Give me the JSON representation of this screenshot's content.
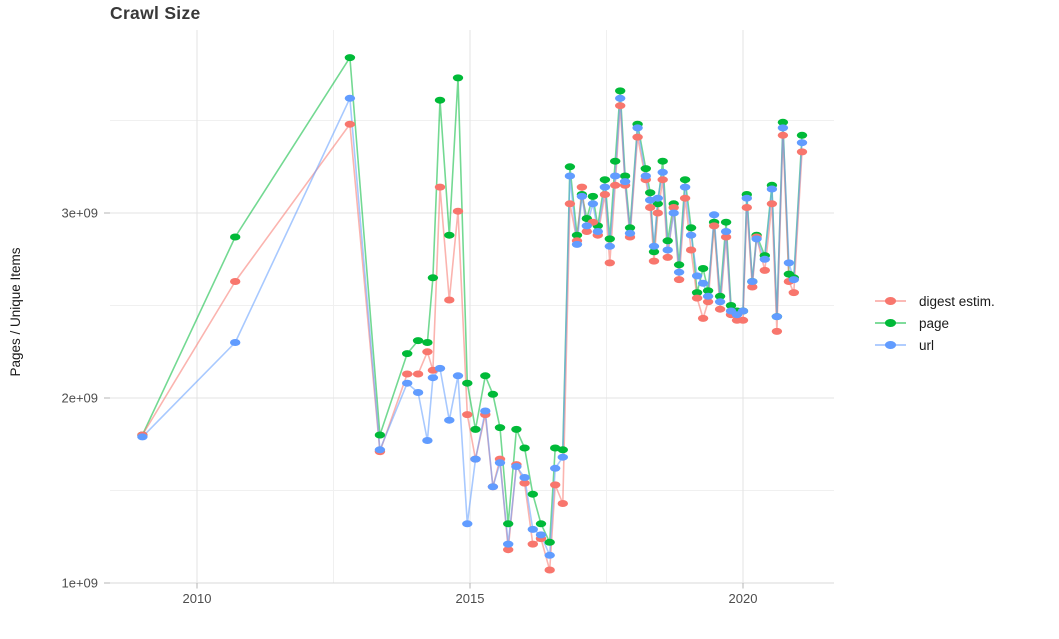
{
  "chart": {
    "title": "Crawl Size",
    "y_axis_label": "Pages / Unique Items",
    "legend": [
      {
        "label": "digest estim.",
        "color": "#F8766D"
      },
      {
        "label": "page",
        "color": "#00BA38"
      },
      {
        "label": "url",
        "color": "#619CFF"
      }
    ]
  },
  "chart_data": {
    "type": "line",
    "title": "Crawl Size",
    "xlabel": "",
    "ylabel": "Pages / Unique Items",
    "x_unit": "year (decimal = crawl date)",
    "y_unit": "items, values listed in billions (1e9)",
    "grid": true,
    "legend_position": "right",
    "marker": "ellipse-dot",
    "x_axis": {
      "tick_values": [
        2010,
        2015,
        2020
      ],
      "tick_labels": [
        "2010",
        "2015",
        "2020"
      ],
      "minor_ticks": [
        2012.5,
        2017.5
      ],
      "range": [
        2008.4,
        2021.7
      ]
    },
    "y_axis": {
      "tick_values": [
        1,
        2,
        3
      ],
      "tick_labels": [
        "1e+09",
        "2e+09",
        "3e+09"
      ],
      "minor_ticks": [
        1.5,
        2.5,
        3.5
      ],
      "range": [
        0.99,
        3.99
      ]
    },
    "x": [
      2009.0,
      2010.7,
      2012.8,
      2013.35,
      2013.85,
      2014.05,
      2014.22,
      2014.32,
      2014.45,
      2014.62,
      2014.78,
      2014.95,
      2015.1,
      2015.28,
      2015.42,
      2015.55,
      2015.7,
      2015.85,
      2016.0,
      2016.15,
      2016.3,
      2016.46,
      2016.56,
      2016.7,
      2016.83,
      2016.96,
      2017.05,
      2017.14,
      2017.25,
      2017.34,
      2017.47,
      2017.56,
      2017.66,
      2017.75,
      2017.84,
      2017.93,
      2018.07,
      2018.22,
      2018.3,
      2018.37,
      2018.44,
      2018.53,
      2018.62,
      2018.73,
      2018.83,
      2018.94,
      2019.05,
      2019.16,
      2019.27,
      2019.36,
      2019.47,
      2019.58,
      2019.69,
      2019.78,
      2019.89,
      2020.0,
      2020.07,
      2020.17,
      2020.25,
      2020.4,
      2020.53,
      2020.62,
      2020.73,
      2020.84,
      2020.93,
      2021.08
    ],
    "series": [
      {
        "name": "digest estim.",
        "color": "#F8766D",
        "values": [
          1.8,
          2.63,
          3.48,
          1.71,
          2.13,
          2.13,
          2.25,
          2.15,
          3.14,
          2.53,
          3.01,
          1.91,
          1.67,
          1.91,
          1.52,
          1.67,
          1.18,
          1.64,
          1.54,
          1.21,
          1.24,
          1.07,
          1.53,
          1.43,
          3.05,
          2.85,
          3.14,
          2.9,
          2.95,
          2.88,
          3.1,
          2.73,
          3.15,
          3.58,
          3.15,
          2.87,
          3.41,
          3.18,
          3.03,
          2.74,
          3.0,
          3.18,
          2.76,
          3.03,
          2.64,
          3.08,
          2.8,
          2.54,
          2.43,
          2.52,
          2.93,
          2.48,
          2.87,
          2.45,
          2.42,
          2.42,
          3.03,
          2.6,
          2.87,
          2.69,
          3.05,
          2.36,
          3.42,
          2.63,
          2.57,
          3.33
        ]
      },
      {
        "name": "page",
        "color": "#00BA38",
        "values": [
          1.8,
          2.87,
          3.84,
          1.8,
          2.24,
          2.31,
          2.3,
          2.65,
          3.61,
          2.88,
          3.73,
          2.08,
          1.83,
          2.12,
          2.02,
          1.84,
          1.32,
          1.83,
          1.73,
          1.48,
          1.32,
          1.22,
          1.73,
          1.72,
          3.25,
          2.88,
          3.1,
          2.97,
          3.09,
          2.93,
          3.18,
          2.86,
          3.28,
          3.66,
          3.2,
          2.92,
          3.48,
          3.24,
          3.11,
          2.79,
          3.05,
          3.28,
          2.85,
          3.05,
          2.72,
          3.18,
          2.92,
          2.57,
          2.7,
          2.58,
          2.95,
          2.55,
          2.95,
          2.5,
          2.47,
          2.47,
          3.1,
          2.63,
          2.88,
          2.77,
          3.15,
          2.44,
          3.49,
          2.67,
          2.65,
          3.42
        ]
      },
      {
        "name": "url",
        "color": "#619CFF",
        "values": [
          1.79,
          2.3,
          3.62,
          1.72,
          2.08,
          2.03,
          1.77,
          2.11,
          2.16,
          1.88,
          2.12,
          1.32,
          1.67,
          1.93,
          1.52,
          1.65,
          1.21,
          1.63,
          1.57,
          1.29,
          1.26,
          1.15,
          1.62,
          1.68,
          3.2,
          2.83,
          3.09,
          2.93,
          3.05,
          2.9,
          3.14,
          2.82,
          3.2,
          3.62,
          3.17,
          2.89,
          3.46,
          3.2,
          3.07,
          2.82,
          3.08,
          3.22,
          2.8,
          3.0,
          2.68,
          3.14,
          2.88,
          2.66,
          2.62,
          2.55,
          2.99,
          2.52,
          2.9,
          2.47,
          2.45,
          2.47,
          3.08,
          2.63,
          2.86,
          2.75,
          3.13,
          2.44,
          3.46,
          2.73,
          2.64,
          3.38
        ]
      }
    ],
    "draw_order": [
      "page",
      "digest estim.",
      "url"
    ]
  },
  "layout_colors": {
    "grid_major": "#e3e3e3",
    "grid_minor": "#f0f0f0",
    "axis_line": "#d9d9d9",
    "tick_mark": "#b5b5b5",
    "tick_text": "#4d4d4d"
  }
}
